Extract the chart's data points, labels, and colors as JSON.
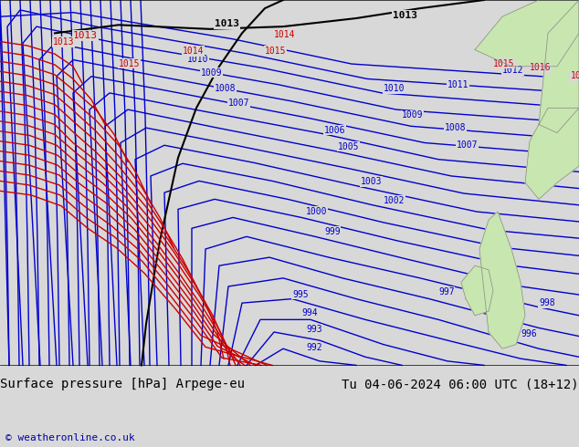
{
  "title_left": "Surface pressure [hPa] Arpege-eu",
  "title_right": "Tu 04-06-2024 06:00 UTC (18+12)",
  "copyright": "© weatheronline.co.uk",
  "background_color": "#d8d8d8",
  "land_color": "#c8e6b0",
  "blue_isobar_color": "#0000cc",
  "red_isobar_color": "#cc0000",
  "black_isobar_color": "#000000",
  "gray_coast_color": "#888888",
  "title_fontsize": 10,
  "copyright_color": "#0000aa",
  "isobar_linewidth": 1.0,
  "label_fontsize": 7
}
